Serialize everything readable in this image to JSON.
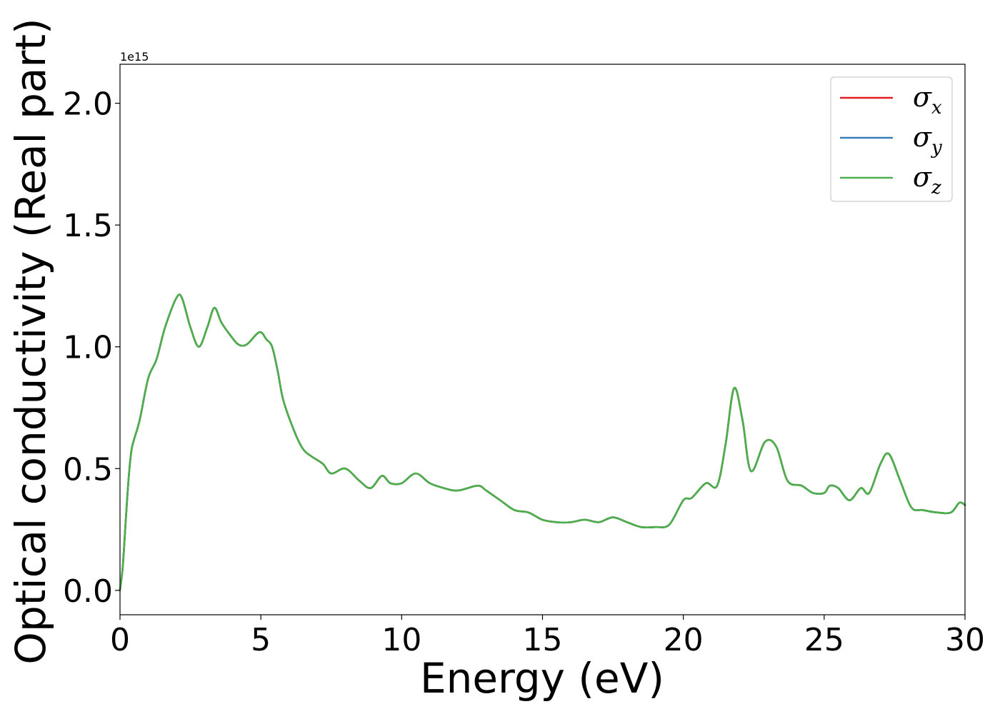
{
  "chart_data": {
    "type": "line",
    "xlabel": "Energy (eV)",
    "ylabel": "Optical conductivity (Real part)",
    "y_offset_label": "1e15",
    "xlim": [
      0,
      30
    ],
    "ylim": [
      -0.1,
      2.16
    ],
    "xticks": [
      0,
      5,
      10,
      15,
      20,
      25,
      30
    ],
    "xtick_labels": [
      "0",
      "5",
      "10",
      "15",
      "20",
      "25",
      "30"
    ],
    "yticks": [
      0.0,
      0.5,
      1.0,
      1.5,
      2.0
    ],
    "ytick_labels": [
      "0.0",
      "0.5",
      "1.0",
      "1.5",
      "2.0"
    ],
    "grid": false,
    "legend_position": "top-right",
    "x": [
      0,
      0.1,
      0.2,
      0.3,
      0.4,
      0.5,
      0.7,
      1.0,
      1.3,
      1.6,
      2.0,
      2.2,
      2.5,
      2.8,
      3.1,
      3.35,
      3.6,
      3.9,
      4.2,
      4.5,
      4.95,
      5.2,
      5.4,
      5.6,
      5.8,
      6.2,
      6.5,
      6.8,
      7.2,
      7.5,
      8.0,
      8.5,
      8.9,
      9.3,
      9.6,
      10.0,
      10.5,
      11.0,
      11.5,
      12.0,
      12.7,
      13.0,
      13.5,
      14.0,
      14.5,
      15.0,
      15.5,
      16.0,
      16.5,
      17.0,
      17.5,
      18.0,
      18.5,
      19.0,
      19.5,
      20.0,
      20.3,
      20.8,
      21.2,
      21.5,
      21.8,
      22.1,
      22.4,
      22.9,
      23.3,
      23.7,
      24.2,
      24.6,
      25.0,
      25.2,
      25.5,
      25.9,
      26.3,
      26.6,
      27.0,
      27.3,
      27.7,
      28.1,
      28.5,
      29.0,
      29.5,
      29.8,
      30.0
    ],
    "series": [
      {
        "name": "σx",
        "color": "#e41a1c",
        "values": [
          0.0,
          0.1,
          0.28,
          0.45,
          0.57,
          0.62,
          0.7,
          0.87,
          0.95,
          1.08,
          1.2,
          1.2,
          1.08,
          1.0,
          1.08,
          1.16,
          1.1,
          1.05,
          1.01,
          1.01,
          1.06,
          1.03,
          1.0,
          0.9,
          0.78,
          0.65,
          0.58,
          0.55,
          0.52,
          0.48,
          0.5,
          0.45,
          0.42,
          0.47,
          0.44,
          0.44,
          0.48,
          0.44,
          0.42,
          0.41,
          0.43,
          0.41,
          0.37,
          0.33,
          0.32,
          0.29,
          0.28,
          0.28,
          0.29,
          0.28,
          0.3,
          0.28,
          0.26,
          0.26,
          0.27,
          0.37,
          0.38,
          0.44,
          0.43,
          0.6,
          0.83,
          0.7,
          0.49,
          0.61,
          0.59,
          0.45,
          0.43,
          0.4,
          0.4,
          0.43,
          0.42,
          0.37,
          0.42,
          0.4,
          0.52,
          0.56,
          0.45,
          0.34,
          0.33,
          0.32,
          0.32,
          0.36,
          0.35
        ]
      },
      {
        "name": "σy",
        "color": "#377eb8",
        "values": [
          0.0,
          0.1,
          0.28,
          0.45,
          0.57,
          0.62,
          0.7,
          0.87,
          0.95,
          1.08,
          1.2,
          1.2,
          1.08,
          1.0,
          1.08,
          1.16,
          1.1,
          1.05,
          1.01,
          1.01,
          1.06,
          1.03,
          1.0,
          0.9,
          0.78,
          0.65,
          0.58,
          0.55,
          0.52,
          0.48,
          0.5,
          0.45,
          0.42,
          0.47,
          0.44,
          0.44,
          0.48,
          0.44,
          0.42,
          0.41,
          0.43,
          0.41,
          0.37,
          0.33,
          0.32,
          0.29,
          0.28,
          0.28,
          0.29,
          0.28,
          0.3,
          0.28,
          0.26,
          0.26,
          0.27,
          0.37,
          0.38,
          0.44,
          0.43,
          0.6,
          0.83,
          0.7,
          0.49,
          0.61,
          0.59,
          0.45,
          0.43,
          0.4,
          0.4,
          0.43,
          0.42,
          0.37,
          0.42,
          0.4,
          0.52,
          0.56,
          0.45,
          0.34,
          0.33,
          0.32,
          0.32,
          0.36,
          0.35
        ]
      },
      {
        "name": "σz",
        "color": "#4daf4a",
        "values": [
          0.0,
          0.1,
          0.28,
          0.45,
          0.57,
          0.62,
          0.7,
          0.87,
          0.95,
          1.08,
          1.2,
          1.2,
          1.08,
          1.0,
          1.08,
          1.16,
          1.1,
          1.05,
          1.01,
          1.01,
          1.06,
          1.03,
          1.0,
          0.9,
          0.78,
          0.65,
          0.58,
          0.55,
          0.52,
          0.48,
          0.5,
          0.45,
          0.42,
          0.47,
          0.44,
          0.44,
          0.48,
          0.44,
          0.42,
          0.41,
          0.43,
          0.41,
          0.37,
          0.33,
          0.32,
          0.29,
          0.28,
          0.28,
          0.29,
          0.28,
          0.3,
          0.28,
          0.26,
          0.26,
          0.27,
          0.37,
          0.38,
          0.44,
          0.43,
          0.6,
          0.83,
          0.7,
          0.49,
          0.61,
          0.59,
          0.45,
          0.43,
          0.4,
          0.4,
          0.43,
          0.42,
          0.37,
          0.42,
          0.4,
          0.52,
          0.56,
          0.45,
          0.34,
          0.33,
          0.32,
          0.32,
          0.36,
          0.35
        ]
      }
    ],
    "legend": [
      {
        "symbol": "σ",
        "subscript": "x",
        "color": "#e41a1c"
      },
      {
        "symbol": "σ",
        "subscript": "y",
        "color": "#377eb8"
      },
      {
        "symbol": "σ",
        "subscript": "z",
        "color": "#4daf4a"
      }
    ]
  }
}
